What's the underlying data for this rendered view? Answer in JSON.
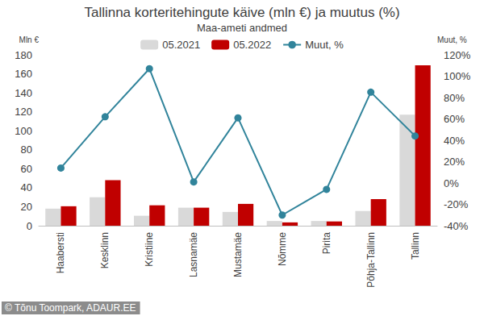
{
  "chart_data": {
    "type": "bar",
    "title": "Tallinna korteritehingute käive (mln €) ja muutus (%)",
    "subtitle": "Maa-ameti andmed",
    "y_label": "Mln €",
    "y2_label": "Muut, %",
    "categories": [
      "Haabersti",
      "Kesklinn",
      "Kristiine",
      "Lasnamäe",
      "Mustamäe",
      "Nõmme",
      "Pirita",
      "Põhja-Tallinn",
      "Tallinn"
    ],
    "series": [
      {
        "name": "05.2021",
        "color": "#d9d9d9",
        "values": [
          18,
          30,
          10.5,
          19,
          14.5,
          5,
          5,
          15.5,
          117
        ]
      },
      {
        "name": "05.2022",
        "color": "#c00000",
        "values": [
          20.5,
          48,
          21.5,
          19,
          23,
          3.5,
          4.5,
          28,
          169
        ]
      },
      {
        "name": "Muut, %",
        "type": "line",
        "axis": "y2",
        "color": "#31849b",
        "marker": "circle",
        "line_style": "solid",
        "values": [
          14,
          62,
          107,
          1,
          61,
          -30,
          -6,
          85,
          44
        ]
      }
    ],
    "ylim": [
      0,
      180
    ],
    "yticks": [
      0,
      20,
      40,
      60,
      80,
      100,
      120,
      140,
      160,
      180
    ],
    "y2lim": [
      -40,
      120
    ],
    "y2ticks": [
      {
        "value": -40,
        "label": "-40%"
      },
      {
        "value": -20,
        "label": "-20%"
      },
      {
        "value": 0,
        "label": "0%"
      },
      {
        "value": 20,
        "label": "20%"
      },
      {
        "value": 40,
        "label": "40%"
      },
      {
        "value": 60,
        "label": "60%"
      },
      {
        "value": 80,
        "label": "80%"
      },
      {
        "value": 100,
        "label": "100%"
      },
      {
        "value": 120,
        "label": "120%"
      }
    ],
    "legend": "top",
    "grid": false,
    "annotations": [
      "© Tõnu Toompark, ADAUR.EE"
    ]
  }
}
